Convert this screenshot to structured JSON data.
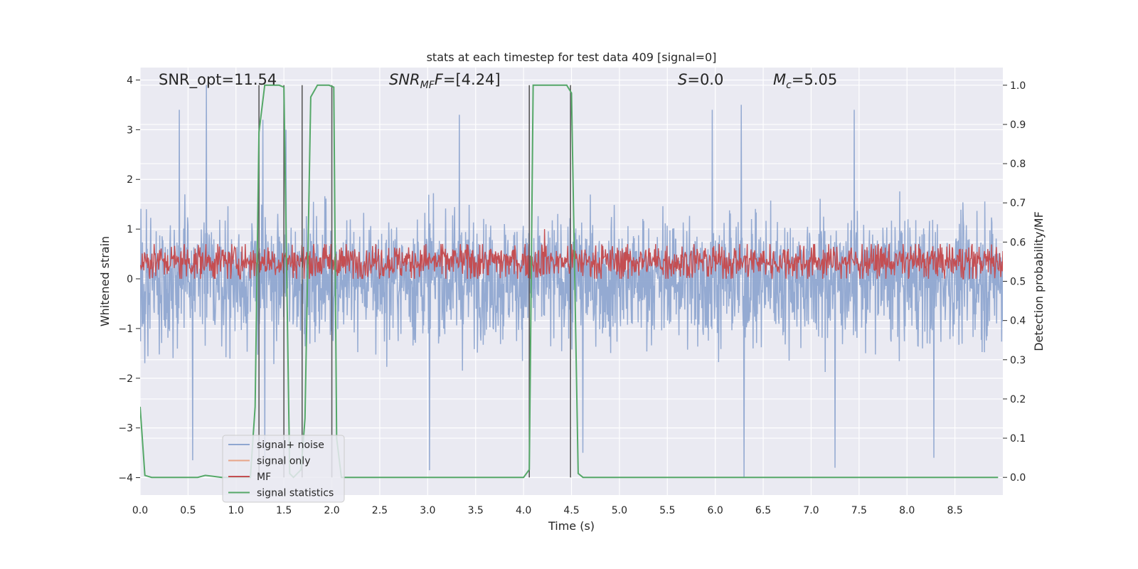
{
  "chart_data": {
    "type": "line",
    "title": "stats at each timestep for test data 409 [signal=0]",
    "xlabel": "Time (s)",
    "ylabel_left": "Whitened strain",
    "ylabel_right": "Detection probability/MF",
    "xlim": [
      0.0,
      9.0
    ],
    "ylim_left": [
      -4.35,
      4.25
    ],
    "ylim_right": [
      -0.045,
      1.045
    ],
    "x_ticks": [
      0.0,
      0.5,
      1.0,
      1.5,
      2.0,
      2.5,
      3.0,
      3.5,
      4.0,
      4.5,
      5.0,
      5.5,
      6.0,
      6.5,
      7.0,
      7.5,
      8.0,
      8.5
    ],
    "x_tick_labels": [
      "0.0",
      "0.5",
      "1.0",
      "1.5",
      "2.0",
      "2.5",
      "3.0",
      "3.5",
      "4.0",
      "4.5",
      "5.0",
      "5.5",
      "6.0",
      "6.5",
      "7.0",
      "7.5",
      "8.0",
      "8.5"
    ],
    "y_left_ticks": [
      4,
      3,
      2,
      1,
      0,
      -1,
      -2,
      -3,
      -4
    ],
    "y_left_tick_labels": [
      "4",
      "3",
      "2",
      "1",
      "0",
      "−1",
      "−2",
      "−3",
      "−4"
    ],
    "y_right_ticks": [
      1.0,
      0.9,
      0.8,
      0.7,
      0.6,
      0.5,
      0.4,
      0.3,
      0.2,
      0.1,
      0.0
    ],
    "y_right_tick_labels": [
      "1.0",
      "0.9",
      "0.8",
      "0.7",
      "0.6",
      "0.5",
      "0.4",
      "0.3",
      "0.2",
      "0.1",
      "0.0"
    ],
    "grid": true,
    "legend_position": "lower-left",
    "annotations": {
      "snr_opt": "SNR_opt=11.54",
      "snr_mf_sym": "SNR",
      "snr_mf_sub": "MF",
      "snr_mf_rest": "=[4.24]",
      "s_sym": "S",
      "s_rest": "=0.0",
      "mc_sym": "M",
      "mc_sub": "c",
      "mc_rest": "=5.05"
    },
    "series": [
      {
        "name": "signal+ noise",
        "axis": "left",
        "color": "#8fa7d0",
        "description_of_shape": "dense noise, envelope roughly +-2.5, extremes near +4 and -4",
        "envelope_upper": 2.3,
        "envelope_lower": -2.3,
        "peaks": [
          {
            "x": 0.41,
            "y": 3.4
          },
          {
            "x": 0.69,
            "y": 3.9
          },
          {
            "x": 1.28,
            "y": 3.2
          },
          {
            "x": 1.52,
            "y": 3.0
          },
          {
            "x": 3.33,
            "y": 3.3
          },
          {
            "x": 5.97,
            "y": 3.4
          },
          {
            "x": 6.27,
            "y": 3.5
          },
          {
            "x": 7.45,
            "y": 3.4
          },
          {
            "x": 0.55,
            "y": -3.65
          },
          {
            "x": 1.3,
            "y": -3.6
          },
          {
            "x": 3.02,
            "y": -3.85
          },
          {
            "x": 4.62,
            "y": -3.5
          },
          {
            "x": 6.3,
            "y": -4.0
          },
          {
            "x": 7.25,
            "y": -3.8
          },
          {
            "x": 8.28,
            "y": -3.6
          }
        ]
      },
      {
        "name": "signal only",
        "axis": "left",
        "color": "#e8a488",
        "values": []
      },
      {
        "name": "MF",
        "axis": "left",
        "color": "#c44e52",
        "description_of_shape": "noise band between about 0 and 0.7 on the left axis",
        "band_lower": 0.0,
        "band_upper": 0.7,
        "peaks": [
          {
            "x": 4.22,
            "y": 1.0
          }
        ]
      },
      {
        "name": "signal statistics",
        "axis": "right",
        "color": "#55a868",
        "x": [
          0.0,
          0.05,
          0.12,
          0.3,
          0.6,
          0.68,
          0.75,
          0.85,
          1.15,
          1.2,
          1.24,
          1.3,
          1.45,
          1.5,
          1.56,
          1.6,
          1.68,
          1.72,
          1.78,
          1.85,
          1.97,
          2.02,
          2.05,
          2.1,
          4.0,
          4.06,
          4.1,
          4.45,
          4.5,
          4.57,
          4.62,
          5.0,
          8.95
        ],
        "y": [
          0.18,
          0.005,
          0.0,
          0.0,
          0.0,
          0.005,
          0.003,
          0.0,
          0.0,
          0.18,
          0.88,
          1.0,
          1.0,
          0.995,
          0.01,
          0.0,
          0.02,
          0.15,
          0.97,
          1.0,
          1.0,
          0.995,
          0.1,
          0.0,
          0.0,
          0.02,
          1.0,
          1.0,
          0.98,
          0.01,
          0.0,
          0.0,
          0.0
        ]
      }
    ],
    "vertical_markers": {
      "color": "#5a5a5a",
      "x": [
        1.24,
        1.5,
        1.69,
        2.0,
        4.06,
        4.49
      ]
    }
  }
}
